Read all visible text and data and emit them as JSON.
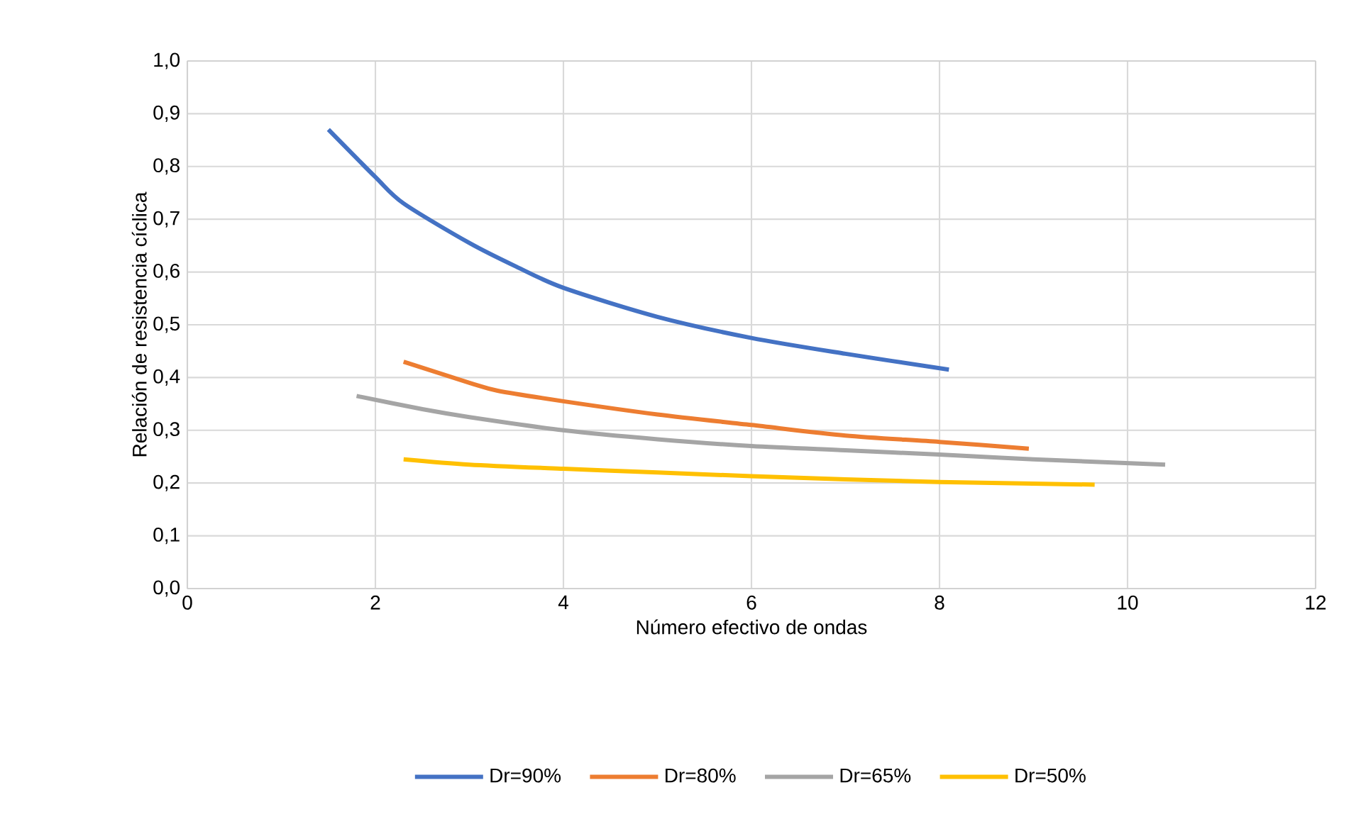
{
  "chart_data": {
    "type": "line",
    "xlabel": "Número efectivo de ondas",
    "ylabel": "Relación de resistencia cíclica",
    "xlim": [
      0,
      12
    ],
    "xticks": [
      0,
      2,
      4,
      6,
      8,
      10,
      12
    ],
    "ylim": [
      0,
      1
    ],
    "yticks": [
      {
        "value": 0,
        "label": "0,0"
      },
      {
        "value": 0.1,
        "label": "0,1"
      },
      {
        "value": 0.2,
        "label": "0,2"
      },
      {
        "value": 0.3,
        "label": "0,3"
      },
      {
        "value": 0.4,
        "label": "0,4"
      },
      {
        "value": 0.5,
        "label": "0,5"
      },
      {
        "value": 0.6,
        "label": "0,6"
      },
      {
        "value": 0.7,
        "label": "0,7"
      },
      {
        "value": 0.8,
        "label": "0,8"
      },
      {
        "value": 0.9,
        "label": "0,9"
      },
      {
        "value": 1,
        "label": "1,0"
      }
    ],
    "grid": true,
    "legend": "bottom",
    "marker": "none",
    "line_style": "solid",
    "series": [
      {
        "name": "Dr=90%",
        "color": "#4472c4",
        "x": [
          1.5,
          2,
          2.3,
          3,
          3.5,
          4,
          5,
          6,
          7,
          8.1
        ],
        "values": [
          0.87,
          0.78,
          0.73,
          0.655,
          0.61,
          0.57,
          0.515,
          0.475,
          0.445,
          0.415
        ]
      },
      {
        "name": "Dr=80%",
        "color": "#ed7d31",
        "x": [
          2.3,
          3,
          3.3,
          4,
          5,
          6,
          7,
          8,
          8.95
        ],
        "values": [
          0.43,
          0.39,
          0.375,
          0.355,
          0.33,
          0.31,
          0.29,
          0.278,
          0.265
        ]
      },
      {
        "name": "Dr=65%",
        "color": "#a5a5a5",
        "x": [
          1.8,
          2.5,
          3,
          4,
          5,
          6,
          7,
          8,
          9,
          10.4
        ],
        "values": [
          0.365,
          0.34,
          0.325,
          0.3,
          0.283,
          0.27,
          0.262,
          0.254,
          0.245,
          0.235
        ]
      },
      {
        "name": "Dr=50%",
        "color": "#ffc000",
        "x": [
          2.3,
          3,
          4,
          5,
          6,
          7,
          8,
          9.65
        ],
        "values": [
          0.245,
          0.235,
          0.227,
          0.22,
          0.213,
          0.207,
          0.202,
          0.197
        ]
      }
    ]
  }
}
